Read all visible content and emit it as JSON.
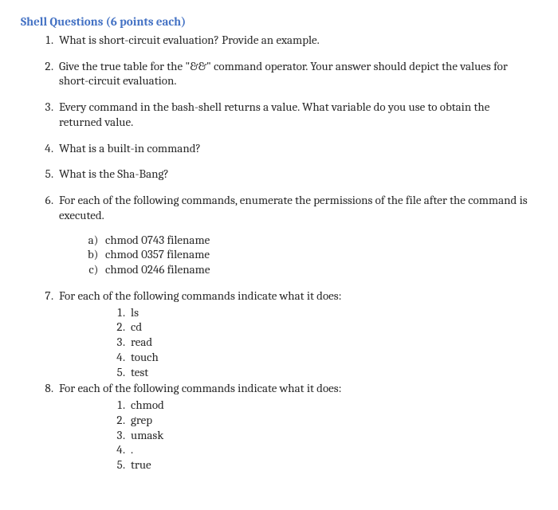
{
  "heading": "Shell Questions (6 points each)",
  "questions": [
    {
      "text": "What is short-circuit evaluation?  Provide an example."
    },
    {
      "text": "Give the true table for the \"&&\" command operator.  Your answer should depict the values for short-circuit evaluation."
    },
    {
      "text": "Every command in the bash-shell returns a value.   What variable do you use to obtain the returned value."
    },
    {
      "text": "What is a built-in command?"
    },
    {
      "text": "What is the Sha-Bang?"
    },
    {
      "text": "For each of the following commands, enumerate the permissions of the file after the command is executed.",
      "sub_alpha": [
        "chmod 0743 filename",
        "chmod 0357 filename",
        "chmod 0246 filename"
      ]
    },
    {
      "text": "For each of the following commands indicate what it does:",
      "sub_num": [
        "ls",
        "cd",
        "read",
        "touch",
        "test"
      ]
    },
    {
      "text": "For each of the following commands indicate what it does:",
      "sub_num": [
        "chmod",
        "grep",
        "umask",
        ".",
        "true"
      ]
    }
  ]
}
